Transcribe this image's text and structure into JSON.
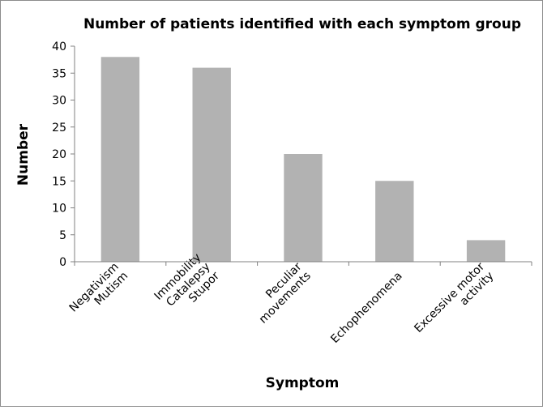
{
  "chart_data": {
    "type": "bar",
    "title": "Number of patients identified with each symptom group",
    "xlabel": "Symptom",
    "ylabel": "Number",
    "ylim": [
      0,
      40
    ],
    "yticks": [
      0,
      5,
      10,
      15,
      20,
      25,
      30,
      35,
      40
    ],
    "grid": false,
    "legend": "none",
    "bar_color": "#b2b2b2",
    "categories": [
      [
        "Negativism",
        "Mutism"
      ],
      [
        "Immobility",
        "Catalepsy",
        "Stupor"
      ],
      [
        "Peculiar",
        "movements"
      ],
      [
        "Echophenomena"
      ],
      [
        "Excessive motor",
        "activity"
      ]
    ],
    "values": [
      38,
      36,
      20,
      15,
      4
    ]
  }
}
